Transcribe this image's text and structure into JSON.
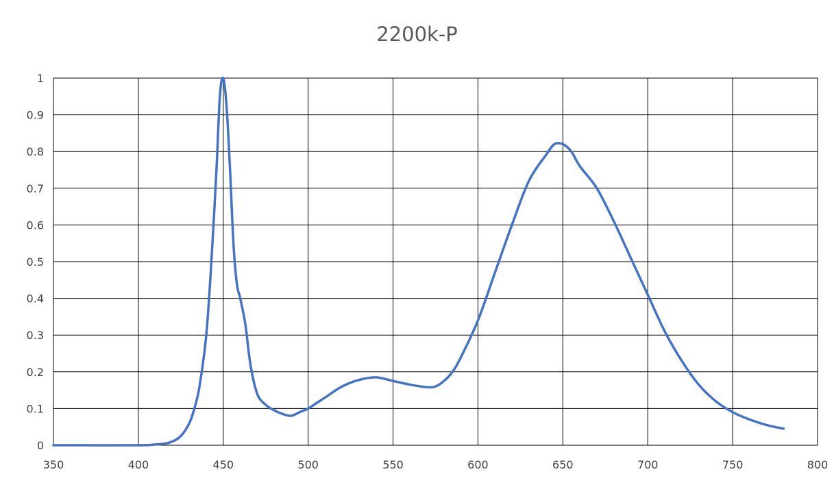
{
  "chart_data": {
    "type": "line",
    "title": "2200k-P",
    "xlabel": "",
    "ylabel": "",
    "xlim": [
      350,
      800
    ],
    "ylim": [
      0,
      1
    ],
    "x_ticks": [
      350,
      400,
      450,
      500,
      550,
      600,
      650,
      700,
      750,
      800
    ],
    "y_ticks": [
      0,
      0.1,
      0.2,
      0.3,
      0.4,
      0.5,
      0.6,
      0.7,
      0.8,
      0.9,
      1
    ],
    "grid": true,
    "legend": "none",
    "series": [
      {
        "color": "#4472C4",
        "x": [
          350,
          400,
          410,
          415,
          420,
          425,
          430,
          433,
          436,
          440,
          443,
          446,
          448,
          450,
          452,
          454,
          456,
          458,
          460,
          463,
          466,
          470,
          475,
          480,
          485,
          490,
          495,
          500,
          505,
          510,
          520,
          530,
          540,
          550,
          560,
          570,
          575,
          580,
          585,
          590,
          600,
          610,
          620,
          630,
          640,
          645,
          650,
          655,
          660,
          670,
          680,
          690,
          700,
          710,
          720,
          730,
          740,
          750,
          760,
          770,
          780
        ],
        "y": [
          0,
          0,
          0.002,
          0.004,
          0.01,
          0.025,
          0.06,
          0.1,
          0.16,
          0.3,
          0.5,
          0.75,
          0.95,
          1.0,
          0.92,
          0.75,
          0.55,
          0.44,
          0.4,
          0.33,
          0.22,
          0.14,
          0.11,
          0.095,
          0.085,
          0.08,
          0.09,
          0.1,
          0.115,
          0.13,
          0.16,
          0.178,
          0.185,
          0.175,
          0.165,
          0.158,
          0.16,
          0.175,
          0.2,
          0.24,
          0.34,
          0.47,
          0.6,
          0.72,
          0.79,
          0.82,
          0.82,
          0.8,
          0.76,
          0.7,
          0.61,
          0.51,
          0.41,
          0.31,
          0.23,
          0.165,
          0.12,
          0.09,
          0.07,
          0.055,
          0.045
        ]
      }
    ]
  }
}
